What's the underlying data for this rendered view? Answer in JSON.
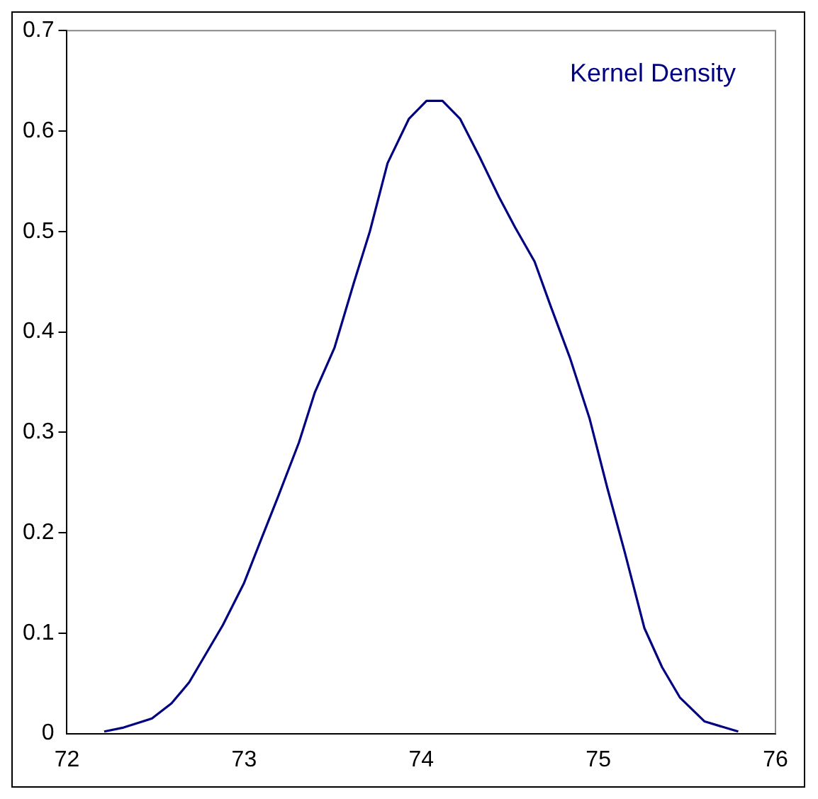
{
  "chart_data": {
    "type": "line",
    "xlim": [
      72,
      76
    ],
    "xticks": [
      72,
      73,
      74,
      75,
      76
    ],
    "ylim": [
      0,
      0.7
    ],
    "yticks": [
      0,
      0.1,
      0.2,
      0.3,
      0.4,
      0.5,
      0.6,
      0.7
    ],
    "grid": false,
    "marker": "none",
    "line_style": "solid",
    "series": [
      {
        "name": "Kernel Density",
        "color": "#000080",
        "x": [
          72.21,
          72.32,
          72.48,
          72.59,
          72.69,
          72.79,
          72.88,
          73.0,
          73.1,
          73.19,
          73.31,
          73.4,
          73.51,
          73.62,
          73.71,
          73.81,
          73.93,
          74.03,
          74.12,
          74.22,
          74.33,
          74.44,
          74.53,
          74.64,
          74.73,
          74.84,
          74.95,
          75.05,
          75.15,
          75.26,
          75.36,
          75.46,
          75.6,
          75.79
        ],
        "values": [
          0.002,
          0.006,
          0.015,
          0.03,
          0.051,
          0.081,
          0.108,
          0.15,
          0.195,
          0.235,
          0.29,
          0.34,
          0.384,
          0.449,
          0.5,
          0.568,
          0.612,
          0.63,
          0.63,
          0.612,
          0.574,
          0.534,
          0.504,
          0.47,
          0.426,
          0.374,
          0.314,
          0.245,
          0.18,
          0.105,
          0.066,
          0.036,
          0.012,
          0.002
        ]
      }
    ]
  }
}
